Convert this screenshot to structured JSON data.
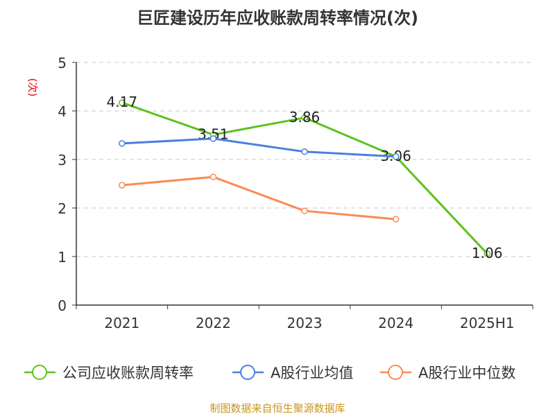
{
  "chart_data": {
    "type": "line",
    "title": "巨匠建设历年应收账款周转率情况(次)",
    "ylabel": "(次)",
    "xlabel": "",
    "categories": [
      "2021",
      "2022",
      "2023",
      "2024",
      "2025H1"
    ],
    "ylim": [
      0,
      5
    ],
    "yticks": [
      "0",
      "1",
      "2",
      "3",
      "4",
      "5"
    ],
    "grid": true,
    "legend_position": "bottom",
    "series": [
      {
        "name": "公司应收账款周转率",
        "color": "#5cc21a",
        "values": [
          4.17,
          3.51,
          3.86,
          3.06,
          1.06
        ],
        "labels": [
          "4.17",
          "3.51",
          "3.86",
          "3.06",
          "1.06"
        ]
      },
      {
        "name": "A股行业均值",
        "color": "#4a7fe0",
        "values": [
          3.33,
          3.43,
          3.16,
          3.06,
          null
        ]
      },
      {
        "name": "A股行业中位数",
        "color": "#fb8a54",
        "values": [
          2.47,
          2.64,
          1.94,
          1.77,
          null
        ]
      }
    ]
  },
  "source": "制图数据来自恒生聚源数据库"
}
